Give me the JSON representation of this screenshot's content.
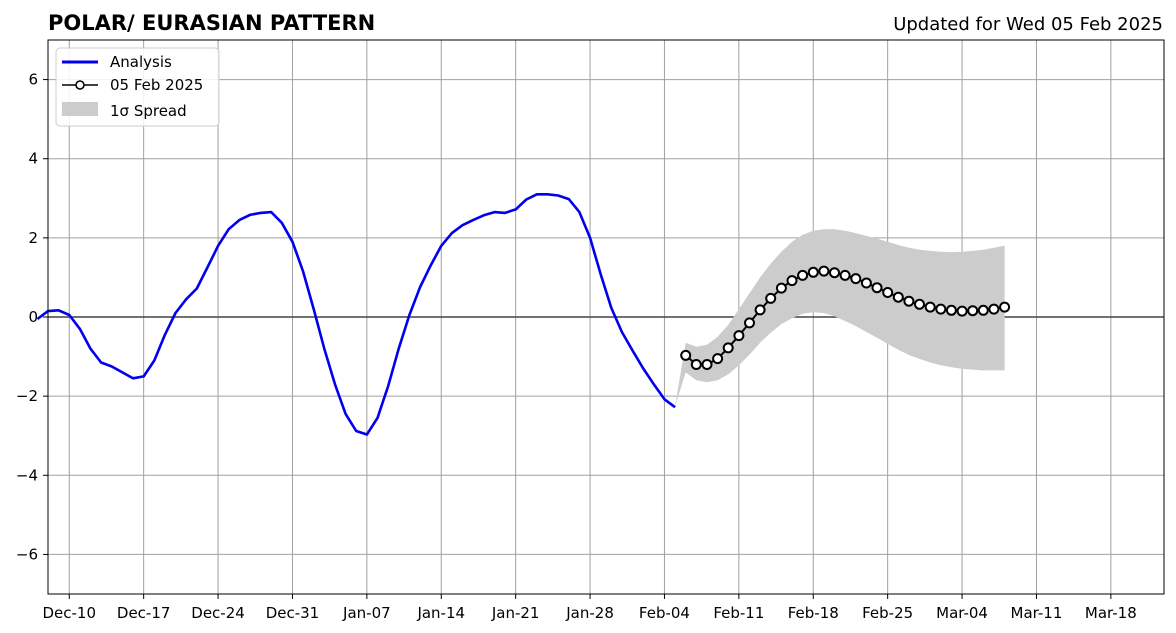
{
  "chart_data": {
    "type": "line",
    "title": "POLAR/ EURASIAN  PATTERN",
    "subtitle": "Updated for Wed 05 Feb 2025",
    "xlabel": "",
    "ylabel": "",
    "x_axis": {
      "start": "2024-12-08",
      "end": "2025-03-23",
      "tick_dates": [
        "2024-12-10",
        "2024-12-17",
        "2024-12-24",
        "2024-12-31",
        "2025-01-07",
        "2025-01-14",
        "2025-01-21",
        "2025-01-28",
        "2025-02-04",
        "2025-02-11",
        "2025-02-18",
        "2025-02-25",
        "2025-03-04",
        "2025-03-11",
        "2025-03-18"
      ],
      "tick_labels": [
        "Dec-10",
        "Dec-17",
        "Dec-24",
        "Dec-31",
        "Jan-07",
        "Jan-14",
        "Jan-21",
        "Jan-28",
        "Feb-04",
        "Feb-11",
        "Feb-18",
        "Feb-25",
        "Mar-04",
        "Mar-11",
        "Mar-18"
      ]
    },
    "y_axis": {
      "ylim": [
        -7,
        7
      ],
      "ticks": [
        -6,
        -4,
        -2,
        0,
        2,
        4,
        6
      ],
      "tick_labels": [
        "−6",
        "−4",
        "−2",
        "0",
        "2",
        "4",
        "6"
      ]
    },
    "grid": true,
    "legend_position": "top-left",
    "legend": [
      {
        "label": "Analysis",
        "kind": "line"
      },
      {
        "label": "05 Feb 2025",
        "kind": "line-marker"
      },
      {
        "label": "1σ Spread",
        "kind": "patch"
      }
    ],
    "series": [
      {
        "name": "Analysis",
        "color": "#0000ee",
        "dates": [
          "2024-12-07",
          "2024-12-08",
          "2024-12-09",
          "2024-12-10",
          "2024-12-11",
          "2024-12-12",
          "2024-12-13",
          "2024-12-14",
          "2024-12-15",
          "2024-12-16",
          "2024-12-17",
          "2024-12-18",
          "2024-12-19",
          "2024-12-20",
          "2024-12-21",
          "2024-12-22",
          "2024-12-23",
          "2024-12-24",
          "2024-12-25",
          "2024-12-26",
          "2024-12-27",
          "2024-12-28",
          "2024-12-29",
          "2024-12-30",
          "2024-12-31",
          "2025-01-01",
          "2025-01-02",
          "2025-01-03",
          "2025-01-04",
          "2025-01-05",
          "2025-01-06",
          "2025-01-07",
          "2025-01-08",
          "2025-01-09",
          "2025-01-10",
          "2025-01-11",
          "2025-01-12",
          "2025-01-13",
          "2025-01-14",
          "2025-01-15",
          "2025-01-16",
          "2025-01-17",
          "2025-01-18",
          "2025-01-19",
          "2025-01-20",
          "2025-01-21",
          "2025-01-22",
          "2025-01-23",
          "2025-01-24",
          "2025-01-25",
          "2025-01-26",
          "2025-01-27",
          "2025-01-28",
          "2025-01-29",
          "2025-01-30",
          "2025-01-31",
          "2025-02-01",
          "2025-02-02",
          "2025-02-03",
          "2025-02-04",
          "2025-02-05"
        ],
        "values": [
          -0.05,
          0.15,
          0.17,
          0.05,
          -0.3,
          -0.8,
          -1.15,
          -1.25,
          -1.4,
          -1.55,
          -1.5,
          -1.1,
          -0.45,
          0.1,
          0.45,
          0.72,
          1.25,
          1.8,
          2.22,
          2.45,
          2.58,
          2.63,
          2.65,
          2.38,
          1.9,
          1.15,
          0.2,
          -0.8,
          -1.7,
          -2.45,
          -2.88,
          -2.97,
          -2.55,
          -1.75,
          -0.8,
          0.05,
          0.75,
          1.3,
          1.8,
          2.12,
          2.32,
          2.45,
          2.57,
          2.65,
          2.63,
          2.72,
          2.97,
          3.1,
          3.1,
          3.07,
          2.98,
          2.65,
          2.0,
          1.08,
          0.23,
          -0.38,
          -0.85,
          -1.3,
          -1.7,
          -2.08,
          -2.28
        ]
      },
      {
        "name": "05 Feb 2025",
        "color": "#000000",
        "marker_face": "#ffffff",
        "dates": [
          "2025-02-06",
          "2025-02-07",
          "2025-02-08",
          "2025-02-09",
          "2025-02-10",
          "2025-02-11",
          "2025-02-12",
          "2025-02-13",
          "2025-02-14",
          "2025-02-15",
          "2025-02-16",
          "2025-02-17",
          "2025-02-18",
          "2025-02-19",
          "2025-02-20",
          "2025-02-21",
          "2025-02-22",
          "2025-02-23",
          "2025-02-24",
          "2025-02-25",
          "2025-02-26",
          "2025-02-27",
          "2025-02-28",
          "2025-03-01",
          "2025-03-02",
          "2025-03-03",
          "2025-03-04",
          "2025-03-05",
          "2025-03-06",
          "2025-03-07",
          "2025-03-08"
        ],
        "values": [
          -0.97,
          -1.2,
          -1.2,
          -1.05,
          -0.78,
          -0.47,
          -0.15,
          0.18,
          0.47,
          0.73,
          0.92,
          1.05,
          1.13,
          1.16,
          1.12,
          1.05,
          0.97,
          0.86,
          0.74,
          0.62,
          0.5,
          0.4,
          0.32,
          0.25,
          0.2,
          0.17,
          0.15,
          0.16,
          0.17,
          0.2,
          0.25
        ]
      }
    ],
    "spread": {
      "name": "1σ Spread",
      "color": "#cccccc",
      "dates": [
        "2025-02-05",
        "2025-02-06",
        "2025-02-07",
        "2025-02-08",
        "2025-02-09",
        "2025-02-10",
        "2025-02-11",
        "2025-02-12",
        "2025-02-13",
        "2025-02-14",
        "2025-02-15",
        "2025-02-16",
        "2025-02-17",
        "2025-02-18",
        "2025-02-19",
        "2025-02-20",
        "2025-02-21",
        "2025-02-22",
        "2025-02-23",
        "2025-02-24",
        "2025-02-25",
        "2025-02-26",
        "2025-02-27",
        "2025-02-28",
        "2025-03-01",
        "2025-03-02",
        "2025-03-03",
        "2025-03-04",
        "2025-03-05",
        "2025-03-06",
        "2025-03-07",
        "2025-03-08"
      ],
      "upper": [
        -2.25,
        -0.65,
        -0.75,
        -0.7,
        -0.5,
        -0.2,
        0.2,
        0.6,
        1.0,
        1.35,
        1.65,
        1.9,
        2.08,
        2.18,
        2.22,
        2.22,
        2.18,
        2.12,
        2.05,
        1.98,
        1.9,
        1.82,
        1.75,
        1.7,
        1.67,
        1.65,
        1.64,
        1.65,
        1.67,
        1.7,
        1.75,
        1.8
      ],
      "lower": [
        -2.25,
        -1.4,
        -1.6,
        -1.65,
        -1.6,
        -1.45,
        -1.22,
        -0.95,
        -0.65,
        -0.4,
        -0.18,
        -0.03,
        0.08,
        0.12,
        0.1,
        0.02,
        -0.1,
        -0.23,
        -0.38,
        -0.52,
        -0.68,
        -0.83,
        -0.96,
        -1.06,
        -1.15,
        -1.22,
        -1.27,
        -1.31,
        -1.33,
        -1.35,
        -1.35,
        -1.35
      ]
    },
    "zero_line": true
  }
}
